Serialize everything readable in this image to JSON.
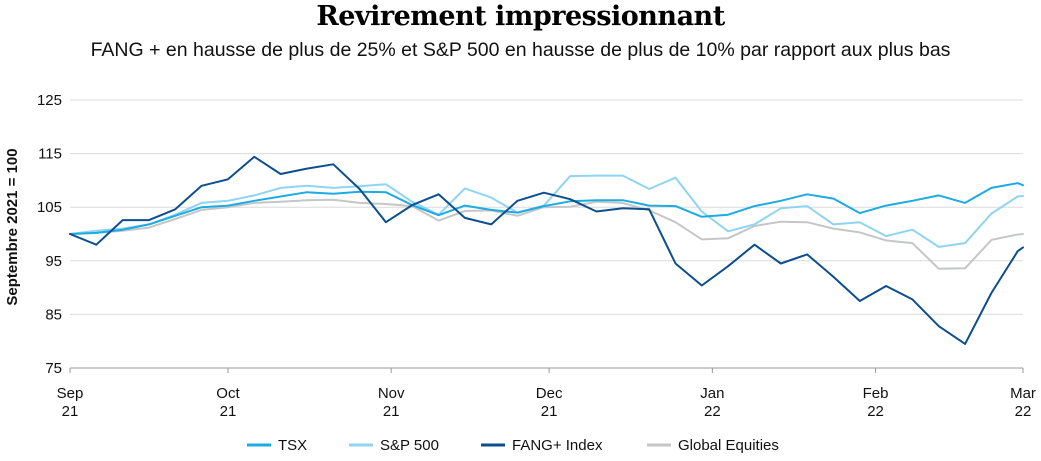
{
  "chart_data": {
    "type": "line",
    "title": "Revirement impressionnant",
    "subtitle": "FANG + en hausse de plus de 25% et S&P 500 en hausse de plus de 10% par rapport aux plus bas",
    "ylabel": "Septembre 2021 = 100",
    "ylim": [
      75,
      125
    ],
    "yticks": [
      75,
      85,
      95,
      105,
      115,
      125
    ],
    "grid": true,
    "legend_position": "bottom",
    "xlim": [
      "2021-09-01",
      "2022-03-01"
    ],
    "xticks": [
      {
        "date": "2021-09-01",
        "line1": "Sep",
        "line2": "21"
      },
      {
        "date": "2021-10-01",
        "line1": "Oct",
        "line2": "21"
      },
      {
        "date": "2021-11-01",
        "line1": "Nov",
        "line2": "21"
      },
      {
        "date": "2021-12-01",
        "line1": "Dec",
        "line2": "21"
      },
      {
        "date": "2022-01-01",
        "line1": "Jan",
        "line2": "22"
      },
      {
        "date": "2022-02-01",
        "line1": "Feb",
        "line2": "22"
      },
      {
        "date": "2022-03-01",
        "line1": "Mar",
        "line2": "22"
      }
    ],
    "series": [
      {
        "name": "TSX",
        "color": "#1cabe2",
        "x": [
          "2021-09-01",
          "2021-09-06",
          "2021-09-11",
          "2021-09-16",
          "2021-09-21",
          "2021-09-26",
          "2021-10-01",
          "2021-10-06",
          "2021-10-11",
          "2021-10-16",
          "2021-10-21",
          "2021-10-26",
          "2021-10-31",
          "2021-11-05",
          "2021-11-10",
          "2021-11-15",
          "2021-11-20",
          "2021-11-25",
          "2021-11-30",
          "2021-12-05",
          "2021-12-10",
          "2021-12-15",
          "2021-12-20",
          "2021-12-25",
          "2021-12-30",
          "2022-01-04",
          "2022-01-09",
          "2022-01-14",
          "2022-01-19",
          "2022-01-24",
          "2022-01-29",
          "2022-02-03",
          "2022-02-08",
          "2022-02-13",
          "2022-02-18",
          "2022-02-23",
          "2022-02-28",
          "2022-03-01"
        ],
        "values": [
          100.0,
          100.2,
          100.8,
          101.8,
          103.4,
          105.0,
          105.3,
          106.2,
          107.0,
          107.8,
          107.5,
          107.9,
          107.8,
          105.4,
          103.5,
          105.3,
          104.5,
          104.0,
          105.2,
          106.1,
          106.3,
          106.3,
          105.3,
          105.2,
          103.2,
          103.6,
          105.2,
          106.2,
          107.4,
          106.6,
          103.9,
          105.3,
          106.2,
          107.2,
          105.8,
          108.6,
          109.5,
          109.1
        ]
      },
      {
        "name": "S&P 500",
        "color": "#8fd4f0",
        "x": [
          "2021-09-01",
          "2021-09-06",
          "2021-09-11",
          "2021-09-16",
          "2021-09-21",
          "2021-09-26",
          "2021-10-01",
          "2021-10-06",
          "2021-10-11",
          "2021-10-16",
          "2021-10-21",
          "2021-10-26",
          "2021-10-31",
          "2021-11-05",
          "2021-11-10",
          "2021-11-15",
          "2021-11-20",
          "2021-11-25",
          "2021-11-30",
          "2021-12-05",
          "2021-12-10",
          "2021-12-15",
          "2021-12-20",
          "2021-12-25",
          "2021-12-30",
          "2022-01-04",
          "2022-01-09",
          "2022-01-14",
          "2022-01-19",
          "2022-01-24",
          "2022-01-29",
          "2022-02-03",
          "2022-02-08",
          "2022-02-13",
          "2022-02-18",
          "2022-02-23",
          "2022-02-28",
          "2022-03-01"
        ],
        "values": [
          100.0,
          100.6,
          101.0,
          101.8,
          103.6,
          105.8,
          106.2,
          107.2,
          108.6,
          109.0,
          108.6,
          108.9,
          109.3,
          106.0,
          103.6,
          108.5,
          106.8,
          104.0,
          105.3,
          110.8,
          110.9,
          110.9,
          108.4,
          110.5,
          104.2,
          100.5,
          101.8,
          104.8,
          105.2,
          101.8,
          102.2,
          99.6,
          100.8,
          97.6,
          98.3,
          103.8,
          107.0,
          107.1
        ]
      },
      {
        "name": "FANG+ Index",
        "color": "#0d4e8e",
        "x": [
          "2021-09-01",
          "2021-09-06",
          "2021-09-11",
          "2021-09-16",
          "2021-09-21",
          "2021-09-26",
          "2021-10-01",
          "2021-10-06",
          "2021-10-11",
          "2021-10-16",
          "2021-10-21",
          "2021-10-26",
          "2021-10-31",
          "2021-11-05",
          "2021-11-10",
          "2021-11-15",
          "2021-11-20",
          "2021-11-25",
          "2021-11-30",
          "2021-12-05",
          "2021-12-10",
          "2021-12-15",
          "2021-12-20",
          "2021-12-25",
          "2021-12-30",
          "2022-01-04",
          "2022-01-09",
          "2022-01-14",
          "2022-01-19",
          "2022-01-24",
          "2022-01-29",
          "2022-02-03",
          "2022-02-08",
          "2022-02-13",
          "2022-02-18",
          "2022-02-23",
          "2022-02-28",
          "2022-03-01"
        ],
        "values": [
          100.0,
          98.0,
          102.6,
          102.6,
          104.6,
          109.0,
          110.2,
          114.4,
          111.2,
          112.2,
          113.0,
          108.4,
          102.2,
          105.4,
          107.4,
          103.0,
          101.8,
          106.2,
          107.7,
          106.5,
          104.2,
          104.8,
          104.6,
          94.5,
          90.4,
          94.0,
          98.0,
          94.5,
          96.2,
          92.0,
          87.5,
          90.3,
          87.8,
          82.8,
          79.5,
          89.0,
          96.8,
          97.5
        ]
      },
      {
        "name": "Global Equities",
        "color": "#c4c6c8",
        "x": [
          "2021-09-01",
          "2021-09-06",
          "2021-09-11",
          "2021-09-16",
          "2021-09-21",
          "2021-09-26",
          "2021-10-01",
          "2021-10-06",
          "2021-10-11",
          "2021-10-16",
          "2021-10-21",
          "2021-10-26",
          "2021-10-31",
          "2021-11-05",
          "2021-11-10",
          "2021-11-15",
          "2021-11-20",
          "2021-11-25",
          "2021-11-30",
          "2021-12-05",
          "2021-12-10",
          "2021-12-15",
          "2021-12-20",
          "2021-12-25",
          "2021-12-30",
          "2022-01-04",
          "2022-01-09",
          "2022-01-14",
          "2022-01-19",
          "2022-01-24",
          "2022-01-29",
          "2022-02-03",
          "2022-02-08",
          "2022-02-13",
          "2022-02-18",
          "2022-02-23",
          "2022-02-28",
          "2022-03-01"
        ],
        "values": [
          100.0,
          100.2,
          100.6,
          101.2,
          102.8,
          104.5,
          105.0,
          105.8,
          106.0,
          106.3,
          106.4,
          105.8,
          105.6,
          105.2,
          102.5,
          104.3,
          104.4,
          103.4,
          105.0,
          105.1,
          106.0,
          105.8,
          104.4,
          102.2,
          99.0,
          99.2,
          101.5,
          102.3,
          102.2,
          101.0,
          100.3,
          98.8,
          98.3,
          93.5,
          93.6,
          98.9,
          99.9,
          100.0
        ]
      }
    ]
  }
}
